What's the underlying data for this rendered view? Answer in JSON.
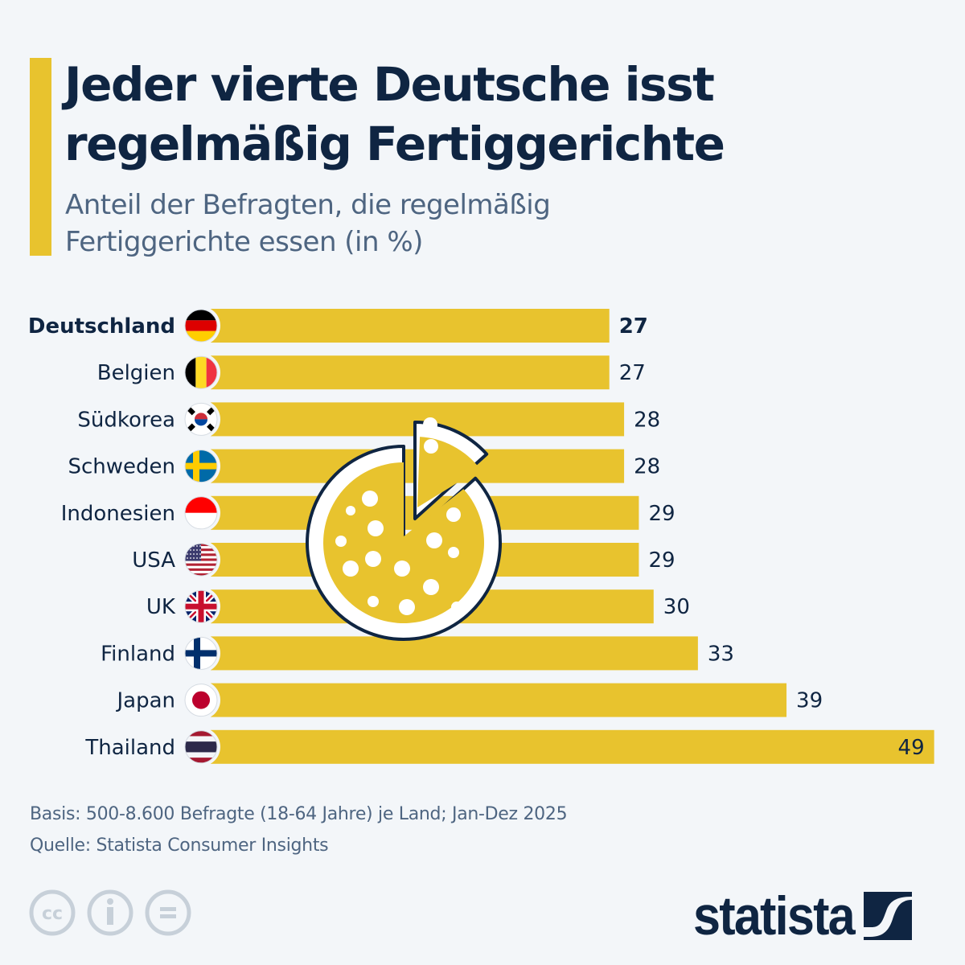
{
  "header": {
    "title_line1": "Jeder vierte Deutsche isst",
    "title_line2": "regelmäßig Fertiggerichte",
    "subtitle_line1": "Anteil der Befragten, die regelmäßig",
    "subtitle_line2": "Fertiggerichte essen (in %)"
  },
  "colors": {
    "bar": "#e8c32e",
    "text": "#0f2542",
    "subtext": "#4e6581",
    "background": "#f3f6f9",
    "highlight_label": "#0f2542"
  },
  "chart_data": {
    "type": "bar",
    "orientation": "horizontal",
    "title": "Jeder vierte Deutsche isst regelmäßig Fertiggerichte",
    "subtitle": "Anteil der Befragten, die regelmäßig Fertiggerichte essen (in %)",
    "xlabel": "",
    "ylabel": "",
    "unit": "%",
    "xlim": [
      0,
      49
    ],
    "grid": false,
    "legend": "none",
    "highlighted": "Deutschland",
    "categories": [
      "Deutschland",
      "Belgien",
      "Südkorea",
      "Schweden",
      "Indonesien",
      "USA",
      "UK",
      "Finland",
      "Japan",
      "Thailand"
    ],
    "flags": [
      "flag-germany",
      "flag-belgium",
      "flag-south-korea",
      "flag-sweden",
      "flag-indonesia",
      "flag-usa",
      "flag-uk",
      "flag-finland",
      "flag-japan",
      "flag-thailand"
    ],
    "values": [
      27,
      27,
      28,
      28,
      29,
      29,
      30,
      33,
      39,
      49
    ],
    "value_labels": [
      "27",
      "27",
      "28",
      "28",
      "29",
      "29",
      "30",
      "33",
      "39",
      "49"
    ],
    "decoration": "pizza-icon"
  },
  "footer": {
    "basis": "Basis: 500-8.600 Befragte (18-64 Jahre) je Land; Jan-Dez 2025",
    "source": "Quelle: Statista Consumer Insights",
    "license_icons": [
      "cc-icon",
      "attribution-icon",
      "no-derivatives-icon"
    ],
    "logo_text": "statista"
  }
}
